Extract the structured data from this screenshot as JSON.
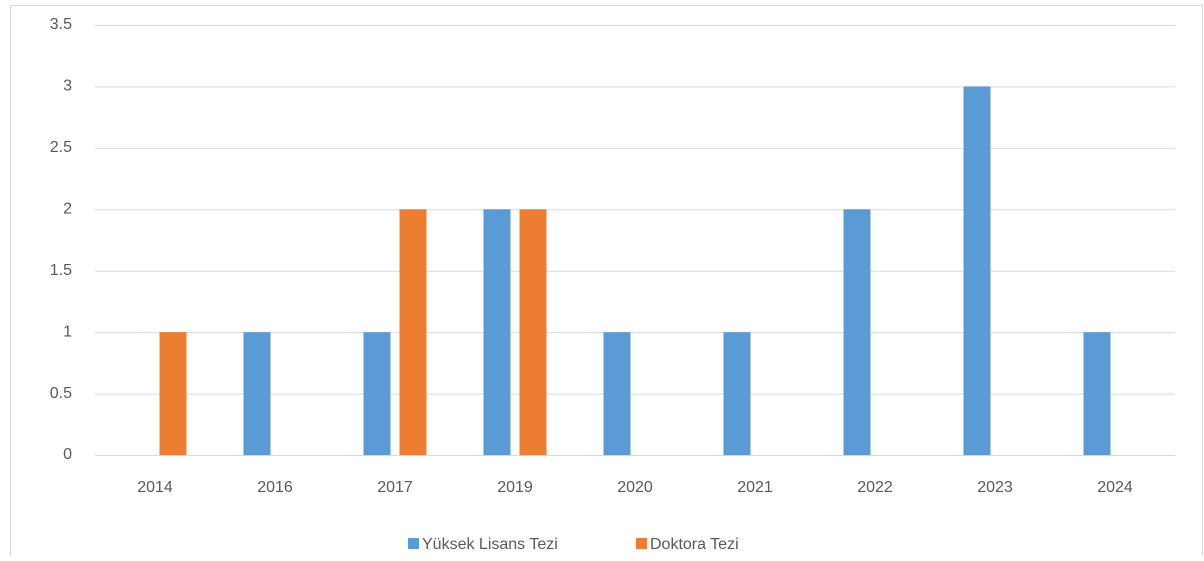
{
  "chart_data": {
    "type": "bar",
    "categories": [
      "2014",
      "2016",
      "2017",
      "2019",
      "2020",
      "2021",
      "2022",
      "2023",
      "2024"
    ],
    "series": [
      {
        "name": "Yüksek Lisans Tezi",
        "color": "#5b9bd5",
        "values": [
          0,
          1,
          1,
          2,
          1,
          1,
          2,
          3,
          1
        ]
      },
      {
        "name": "Doktora Tezi",
        "color": "#ed7d31",
        "values": [
          1,
          0,
          2,
          2,
          0,
          0,
          0,
          0,
          0
        ]
      }
    ],
    "ylim": [
      0,
      3.5
    ],
    "yticks": [
      0,
      0.5,
      1,
      1.5,
      2,
      2.5,
      3,
      3.5
    ],
    "grid": true,
    "legend": "bottom"
  }
}
